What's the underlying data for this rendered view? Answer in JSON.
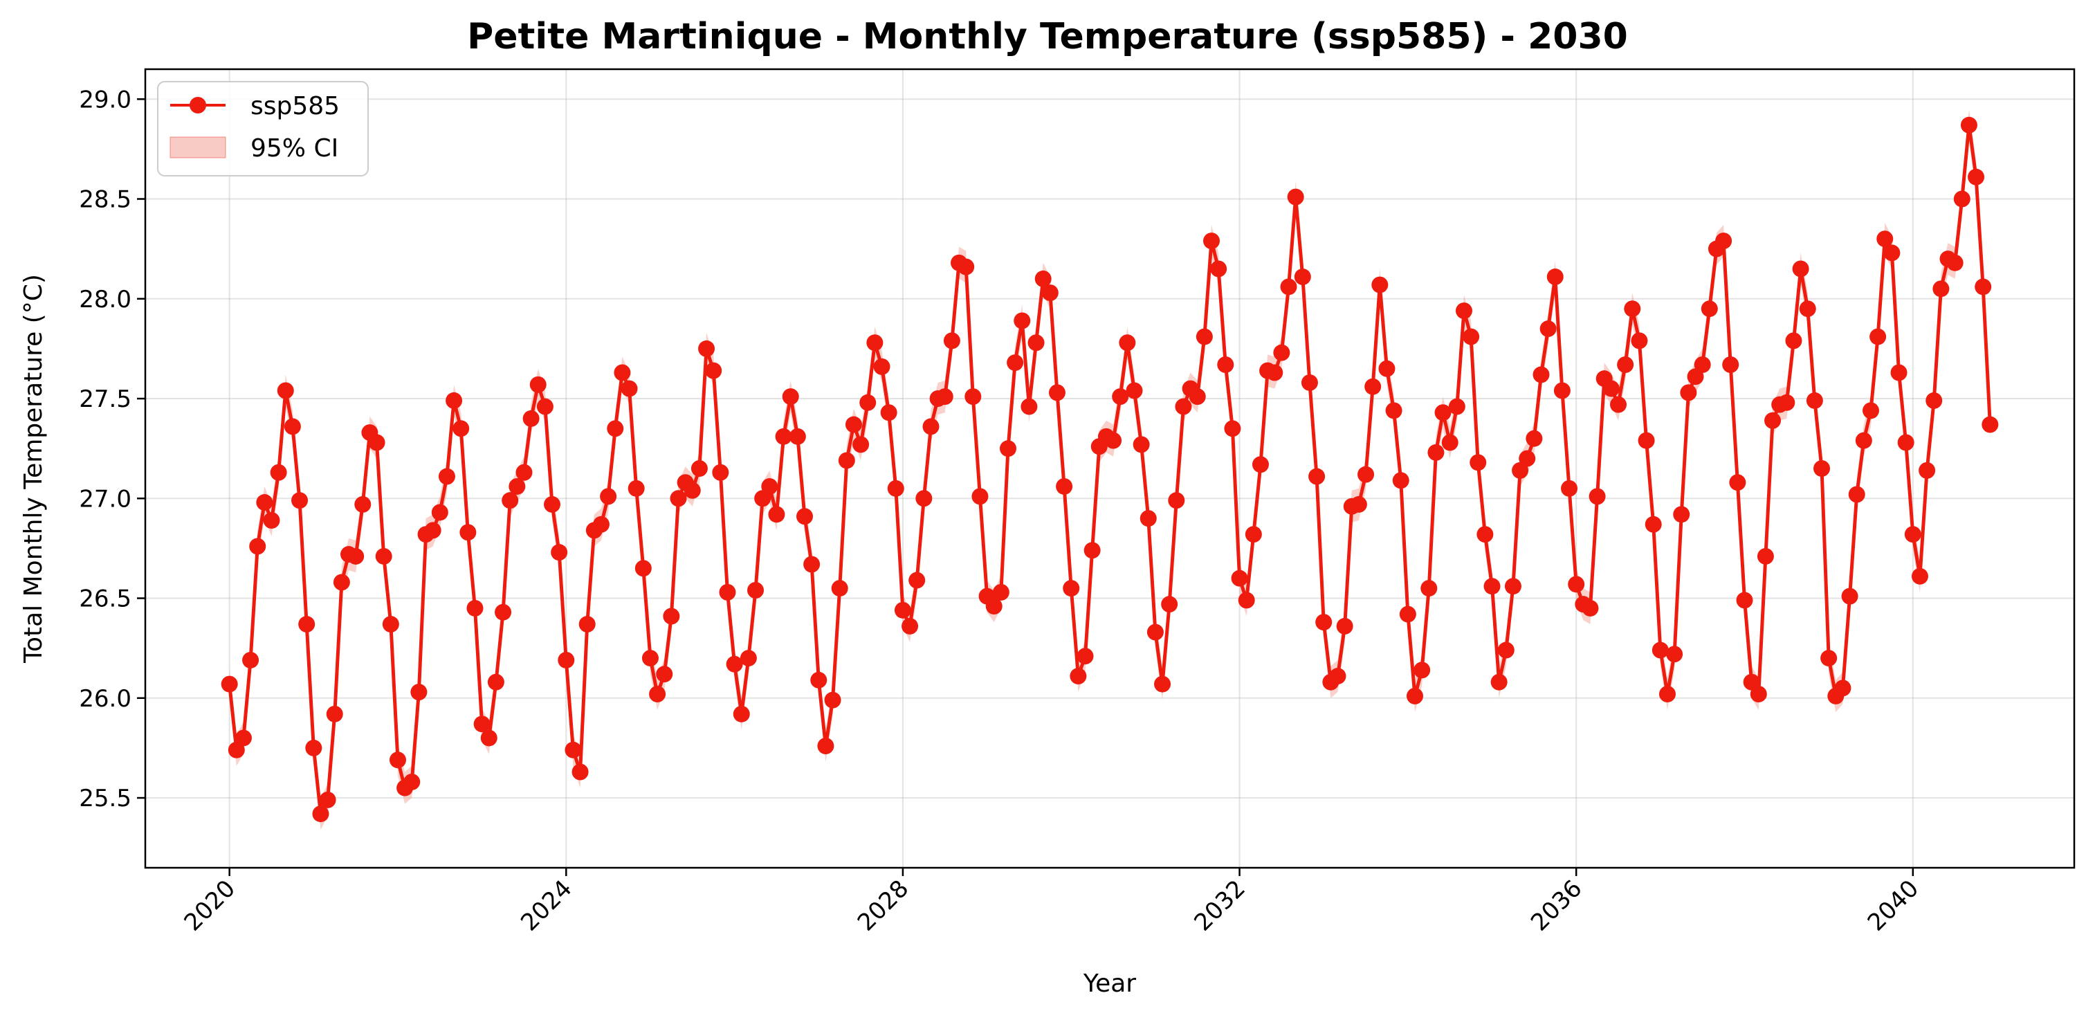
{
  "chart_data": {
    "type": "line",
    "title": "Petite Martinique - Monthly Temperature (ssp585) - 2030",
    "xlabel": "Year",
    "ylabel": "Total Monthly Temperature (°C)",
    "xlim": [
      "2019-01",
      "2041-12"
    ],
    "ylim": [
      25.15,
      29.15
    ],
    "x_ticks": [
      "2020",
      "2024",
      "2028",
      "2032",
      "2036",
      "2040"
    ],
    "y_ticks": [
      "25.5",
      "26.0",
      "26.5",
      "27.0",
      "27.5",
      "28.0",
      "28.5",
      "29.0"
    ],
    "grid": true,
    "legend_position": "top-left",
    "colors": {
      "line": "#ee1c0f",
      "marker": "#ee1c0f",
      "ci_fill": "#f4a99e"
    },
    "series": [
      {
        "name": "ssp585",
        "start": "2020-01",
        "frequency": "monthly",
        "values": [
          26.07,
          25.74,
          25.8,
          26.19,
          26.76,
          26.98,
          26.89,
          27.13,
          27.54,
          27.36,
          26.99,
          26.37,
          25.75,
          25.42,
          25.49,
          25.92,
          26.58,
          26.72,
          26.71,
          26.97,
          27.33,
          27.28,
          26.71,
          26.37,
          25.69,
          25.55,
          25.58,
          26.03,
          26.82,
          26.84,
          26.93,
          27.11,
          27.49,
          27.35,
          26.83,
          26.45,
          25.87,
          25.8,
          26.08,
          26.43,
          26.99,
          27.06,
          27.13,
          27.4,
          27.57,
          27.46,
          26.97,
          26.73,
          26.19,
          25.74,
          25.63,
          26.37,
          26.84,
          26.87,
          27.01,
          27.35,
          27.63,
          27.55,
          27.05,
          26.65,
          26.2,
          26.02,
          26.12,
          26.41,
          27.0,
          27.08,
          27.04,
          27.15,
          27.75,
          27.64,
          27.13,
          26.53,
          26.17,
          25.92,
          26.2,
          26.54,
          27.0,
          27.06,
          26.92,
          27.31,
          27.51,
          27.31,
          26.91,
          26.67,
          26.09,
          25.76,
          25.99,
          26.55,
          27.19,
          27.37,
          27.27,
          27.48,
          27.78,
          27.66,
          27.43,
          27.05,
          26.44,
          26.36,
          26.59,
          27.0,
          27.36,
          27.5,
          27.51,
          27.79,
          28.18,
          28.16,
          27.51,
          27.01,
          26.51,
          26.46,
          26.53,
          27.25,
          27.68,
          27.89,
          27.46,
          27.78,
          28.1,
          28.03,
          27.53,
          27.06,
          26.55,
          26.11,
          26.21,
          26.74,
          27.26,
          27.31,
          27.29,
          27.51,
          27.78,
          27.54,
          27.27,
          26.9,
          26.33,
          26.07,
          26.47,
          26.99,
          27.46,
          27.55,
          27.51,
          27.81,
          28.29,
          28.15,
          27.67,
          27.35,
          26.6,
          26.49,
          26.82,
          27.17,
          27.64,
          27.63,
          27.73,
          28.06,
          28.51,
          28.11,
          27.58,
          27.11,
          26.38,
          26.08,
          26.11,
          26.36,
          26.96,
          26.97,
          27.12,
          27.56,
          28.07,
          27.65,
          27.44,
          27.09,
          26.42,
          26.01,
          26.14,
          26.55,
          27.23,
          27.43,
          27.28,
          27.46,
          27.94,
          27.81,
          27.18,
          26.82,
          26.56,
          26.08,
          26.24,
          26.56,
          27.14,
          27.2,
          27.3,
          27.62,
          27.85,
          28.11,
          27.54,
          27.05,
          26.57,
          26.47,
          26.45,
          27.01,
          27.6,
          27.55,
          27.47,
          27.67,
          27.95,
          27.79,
          27.29,
          26.87,
          26.24,
          26.02,
          26.22,
          26.92,
          27.53,
          27.61,
          27.67,
          27.95,
          28.25,
          28.29,
          27.67,
          27.08,
          26.49,
          26.08,
          26.02,
          26.71,
          27.39,
          27.47,
          27.48,
          27.79,
          28.15,
          27.95,
          27.49,
          27.15,
          26.2,
          26.01,
          26.05,
          26.51,
          27.02,
          27.29,
          27.44,
          27.81,
          28.3,
          28.23,
          27.63,
          27.28,
          26.82,
          26.61,
          27.14,
          27.49,
          28.05,
          28.2,
          28.18,
          28.5,
          28.87,
          28.61,
          28.06,
          27.37
        ]
      },
      {
        "name": "95% CI",
        "kind": "band",
        "half_width": 0.08
      }
    ]
  }
}
